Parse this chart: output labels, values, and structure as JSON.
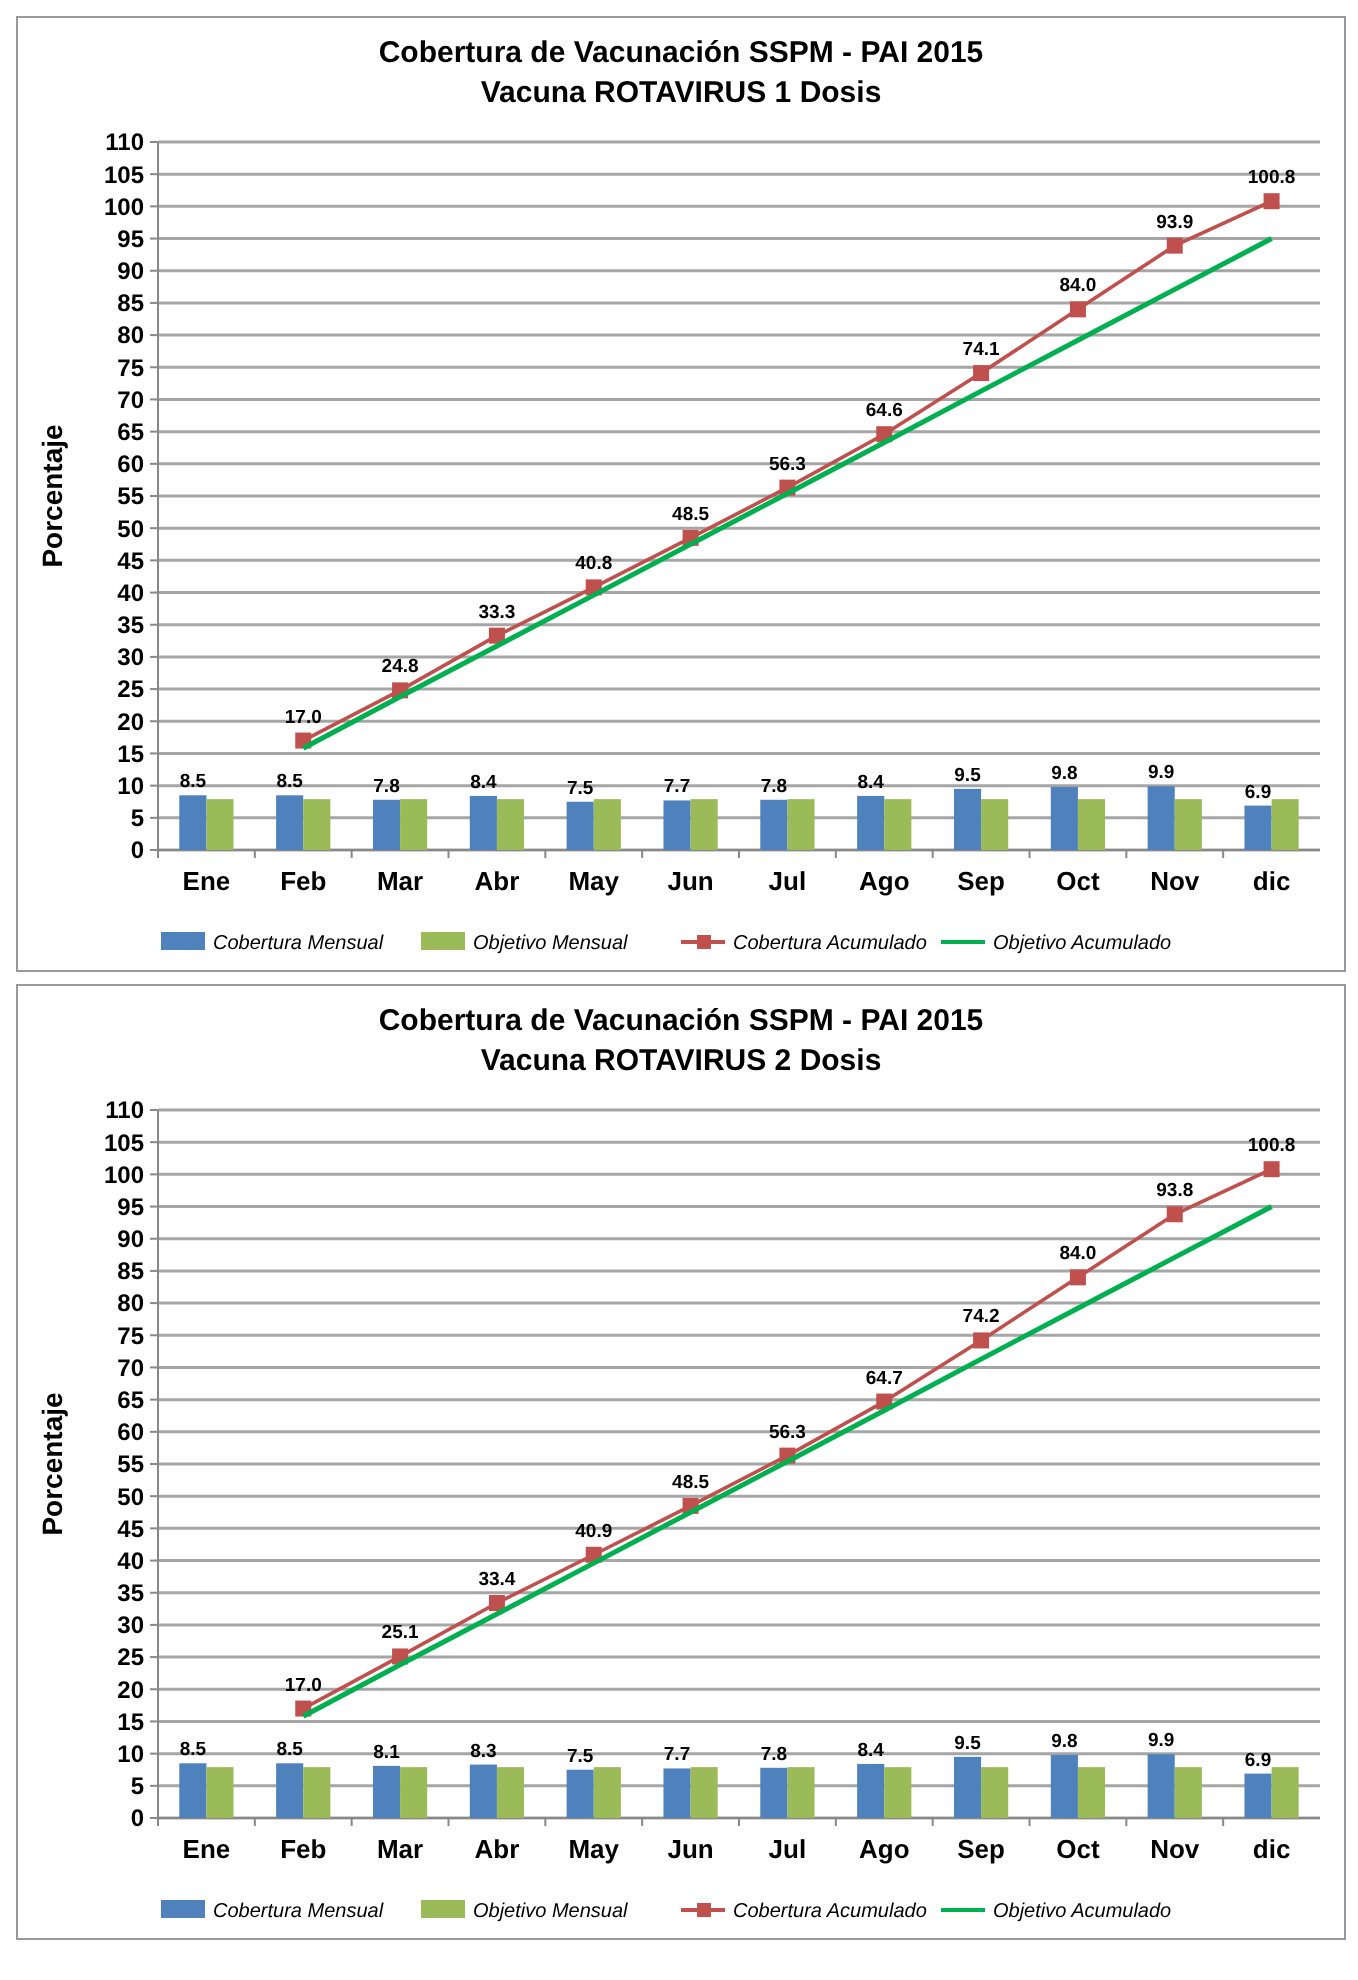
{
  "chart_data": [
    {
      "type": "bar",
      "title": "Cobertura de Vacunación SSPM - PAI 2015",
      "subtitle": "Vacuna  ROTAVIRUS 1 Dosis",
      "ylabel": "Porcentaje",
      "categories": [
        "Ene",
        "Feb",
        "Mar",
        "Abr",
        "May",
        "Jun",
        "Jul",
        "Ago",
        "Sep",
        "Oct",
        "Nov",
        "dic"
      ],
      "ylim": [
        0,
        110
      ],
      "yticks": [
        0,
        5,
        10,
        15,
        20,
        25,
        30,
        35,
        40,
        45,
        50,
        55,
        60,
        65,
        70,
        75,
        80,
        85,
        90,
        95,
        100,
        105,
        110
      ],
      "grid": "y",
      "legend": "bottom",
      "marker": "square",
      "series": [
        {
          "name": "Cobertura Mensual",
          "color": "#4f81bd",
          "values": [
            8.5,
            8.5,
            7.8,
            8.4,
            7.5,
            7.7,
            7.8,
            8.4,
            9.5,
            9.8,
            9.9,
            6.9
          ],
          "value_labels": [
            "8.5",
            "8.5",
            "7.8",
            "8.4",
            "7.5",
            "7.7",
            "7.8",
            "8.4",
            "9.5",
            "9.8",
            "9.9",
            "6.9"
          ]
        },
        {
          "name": "Objetivo Mensual",
          "color": "#9bbb59",
          "values": [
            7.9,
            7.9,
            7.9,
            7.9,
            7.9,
            7.9,
            7.9,
            7.9,
            7.9,
            7.9,
            7.9,
            7.9
          ]
        },
        {
          "name": "Cobertura Acumulado",
          "type": "line",
          "color": "#c0504d",
          "values": [
            null,
            17.0,
            24.8,
            33.3,
            40.8,
            48.5,
            56.3,
            64.6,
            74.1,
            84.0,
            93.9,
            100.8
          ],
          "value_labels": [
            null,
            "17.0",
            "24.8",
            "33.3",
            "40.8",
            "48.5",
            "56.3",
            "64.6",
            "74.1",
            "84.0",
            "93.9",
            "100.8"
          ]
        },
        {
          "name": "Objetivo Acumulado",
          "type": "line",
          "marker": "none",
          "color": "#00b050",
          "values": [
            null,
            15.8,
            23.8,
            31.7,
            39.6,
            47.5,
            55.4,
            63.3,
            71.3,
            79.2,
            87.1,
            95
          ]
        }
      ]
    },
    {
      "type": "bar",
      "title": "Cobertura de Vacunación SSPM - PAI 2015",
      "subtitle": "Vacuna  ROTAVIRUS 2 Dosis",
      "ylabel": "Porcentaje",
      "categories": [
        "Ene",
        "Feb",
        "Mar",
        "Abr",
        "May",
        "Jun",
        "Jul",
        "Ago",
        "Sep",
        "Oct",
        "Nov",
        "dic"
      ],
      "ylim": [
        0,
        110
      ],
      "yticks": [
        0,
        5,
        10,
        15,
        20,
        25,
        30,
        35,
        40,
        45,
        50,
        55,
        60,
        65,
        70,
        75,
        80,
        85,
        90,
        95,
        100,
        105,
        110
      ],
      "grid": "y",
      "legend": "bottom",
      "marker": "square",
      "series": [
        {
          "name": "Cobertura Mensual",
          "color": "#4f81bd",
          "values": [
            8.5,
            8.5,
            8.1,
            8.3,
            7.5,
            7.7,
            7.8,
            8.4,
            9.5,
            9.8,
            9.9,
            6.9
          ],
          "value_labels": [
            "8.5",
            "8.5",
            "8.1",
            "8.3",
            "7.5",
            "7.7",
            "7.8",
            "8.4",
            "9.5",
            "9.8",
            "9.9",
            "6.9"
          ]
        },
        {
          "name": "Objetivo Mensual",
          "color": "#9bbb59",
          "values": [
            7.9,
            7.9,
            7.9,
            7.9,
            7.9,
            7.9,
            7.9,
            7.9,
            7.9,
            7.9,
            7.9,
            7.9
          ]
        },
        {
          "name": "Cobertura Acumulado",
          "type": "line",
          "color": "#c0504d",
          "values": [
            null,
            17.0,
            25.1,
            33.4,
            40.9,
            48.5,
            56.3,
            64.7,
            74.2,
            84.0,
            93.8,
            100.8
          ],
          "value_labels": [
            null,
            "17.0",
            "25.1",
            "33.4",
            "40.9",
            "48.5",
            "56.3",
            "64.7",
            "74.2",
            "84.0",
            "93.8",
            "100.8"
          ]
        },
        {
          "name": "Objetivo Acumulado",
          "type": "line",
          "marker": "none",
          "color": "#00b050",
          "values": [
            null,
            15.8,
            23.8,
            31.7,
            39.6,
            47.5,
            55.4,
            63.3,
            71.3,
            79.2,
            87.1,
            95
          ]
        }
      ]
    }
  ]
}
